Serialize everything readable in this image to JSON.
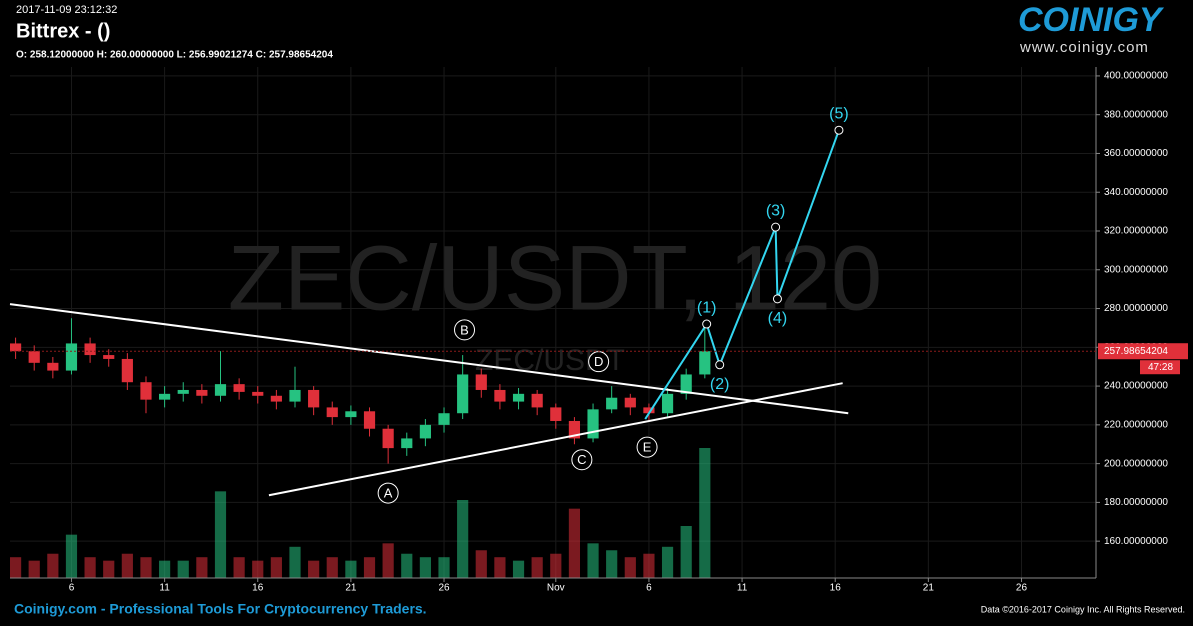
{
  "header": {
    "timestamp": "2017-11-09 23:12:32",
    "title": "Bittrex -  ()",
    "ohlc": "O: 258.12000000 H: 260.00000000 L: 256.99021274 C: 257.98654204"
  },
  "logo": {
    "name": "COINIGY",
    "url": "www.coinigy.com"
  },
  "footer": {
    "left": "Coinigy.com - Professional Tools For Cryptocurrency Traders.",
    "right": "Data ©2016-2017 Coinigy Inc. All Rights Reserved."
  },
  "chart_data": {
    "type": "candlestick",
    "watermark": "ZEC/USDT, 120",
    "watermark_small": "ZEC/USDT",
    "x": [
      3,
      4,
      5,
      6,
      7,
      8,
      9,
      10,
      11,
      12,
      13,
      14,
      15,
      16,
      17,
      18,
      19,
      20,
      21,
      22,
      23,
      24,
      25,
      26,
      27,
      28,
      29,
      30,
      31,
      32,
      33,
      34,
      35,
      36,
      37,
      38,
      39,
      40
    ],
    "open": [
      262,
      258,
      252,
      248,
      262,
      256,
      254,
      242,
      233,
      236,
      238,
      235,
      241,
      237,
      235,
      232,
      238,
      229,
      224,
      227,
      218,
      208,
      213,
      220,
      226,
      246,
      238,
      232,
      236,
      229,
      222,
      213,
      228,
      234,
      229,
      226,
      236,
      246
    ],
    "high": [
      265,
      261,
      255,
      275,
      265,
      259,
      257,
      245,
      240,
      242,
      241,
      258,
      244,
      240,
      238,
      250,
      240,
      232,
      230,
      229,
      220,
      216,
      223,
      229,
      256,
      249,
      241,
      239,
      238,
      231,
      224,
      231,
      240,
      236,
      231,
      239,
      249,
      272
    ],
    "low": [
      254,
      248,
      244,
      246,
      252,
      250,
      238,
      226,
      229,
      232,
      231,
      232,
      233,
      231,
      228,
      229,
      225,
      220,
      220,
      214,
      200,
      204,
      209,
      216,
      223,
      234,
      228,
      228,
      225,
      218,
      210,
      211,
      226,
      225,
      222,
      224,
      233,
      244
    ],
    "close": [
      258,
      252,
      248,
      262,
      256,
      254,
      242,
      233,
      236,
      238,
      235,
      241,
      237,
      235,
      232,
      238,
      229,
      224,
      227,
      218,
      208,
      213,
      220,
      226,
      246,
      238,
      232,
      236,
      229,
      222,
      213,
      228,
      234,
      229,
      226,
      236,
      246,
      258
    ],
    "volume": [
      12,
      10,
      14,
      25,
      12,
      10,
      14,
      12,
      10,
      10,
      12,
      50,
      12,
      10,
      12,
      18,
      10,
      12,
      10,
      12,
      20,
      14,
      12,
      12,
      45,
      16,
      12,
      10,
      12,
      14,
      40,
      20,
      16,
      12,
      14,
      18,
      30,
      75
    ],
    "up_color": "#26c281",
    "down_color": "#e0303a",
    "xlim": [
      2.7,
      61
    ],
    "xticks": [
      6,
      11,
      16,
      21,
      26,
      {
        "value": 32,
        "label": "Nov"
      },
      {
        "value": 37,
        "label": "6"
      },
      {
        "value": 42,
        "label": "11"
      },
      {
        "value": 47,
        "label": "16"
      },
      {
        "value": 52,
        "label": "21"
      },
      {
        "value": 57,
        "label": "26"
      }
    ],
    "ylim": [
      141,
      404.6
    ],
    "yticks": [
      {
        "value": 160,
        "label": "160.00000000"
      },
      {
        "value": 180,
        "label": "180.00000000"
      },
      {
        "value": 200,
        "label": "200.00000000"
      },
      {
        "value": 220,
        "label": "220.00000000"
      },
      {
        "value": 240,
        "label": "240.00000000"
      },
      {
        "value": 260,
        "label": "260.00000000"
      },
      {
        "value": 280,
        "label": "280.00000000"
      },
      {
        "value": 300,
        "label": "300.00000000"
      },
      {
        "value": 320,
        "label": "320.00000000"
      },
      {
        "value": 340,
        "label": "340.00000000"
      },
      {
        "value": 360,
        "label": "360.00000000"
      },
      {
        "value": 380,
        "label": "380.00000000"
      },
      {
        "value": 400,
        "label": "400.00000000"
      }
    ],
    "grid": true,
    "last_price": 257.98654204,
    "countdown": "47:28",
    "trendlines": [
      {
        "x": [
          2.7,
          47.7
        ],
        "y": [
          282.3,
          226
        ]
      },
      {
        "x": [
          16.6,
          47.4
        ],
        "y": [
          183.7,
          241.5
        ]
      }
    ],
    "abcde": [
      {
        "label": "A",
        "x": 23.0,
        "y": 184.8
      },
      {
        "label": "B",
        "x": 27.1,
        "y": 269
      },
      {
        "label": "C",
        "x": 33.4,
        "y": 202
      },
      {
        "label": "D",
        "x": 34.3,
        "y": 252.6
      },
      {
        "label": "E",
        "x": 36.9,
        "y": 208.5
      }
    ],
    "wave": {
      "color": "#33d6f0",
      "x": [
        36.8,
        40.1,
        40.8,
        43.8,
        43.9,
        47.2
      ],
      "y": [
        223,
        272,
        251,
        322,
        285,
        372
      ],
      "labels": [
        null,
        "(1)",
        "(2)",
        "(3)",
        "(4)",
        "(5)"
      ]
    }
  }
}
